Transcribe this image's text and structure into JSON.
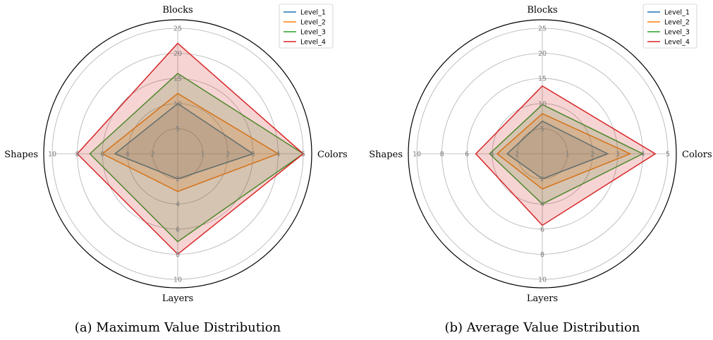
{
  "chart_data": [
    {
      "type": "radar",
      "caption": "(a) Maximum Value Distribution",
      "axes": [
        {
          "name": "Blocks",
          "max": 25,
          "ticks": [
            5,
            10,
            15,
            20,
            25
          ]
        },
        {
          "name": "Colors",
          "max": 5,
          "ticks": [
            1,
            2,
            3,
            4,
            5
          ]
        },
        {
          "name": "Layers",
          "max": 10,
          "ticks": [
            2,
            4,
            6,
            8,
            10
          ]
        },
        {
          "name": "Shapes",
          "max": 10,
          "ticks": [
            2,
            4,
            6,
            8,
            10
          ]
        }
      ],
      "series": [
        {
          "name": "Level_1",
          "color": "#1f77b4",
          "values": [
            10,
            3,
            2,
            5
          ]
        },
        {
          "name": "Level_2",
          "color": "#ff7f0e",
          "values": [
            12,
            4,
            3,
            6
          ]
        },
        {
          "name": "Level_3",
          "color": "#2ca02c",
          "values": [
            16,
            5,
            7,
            7
          ]
        },
        {
          "name": "Level_4",
          "color": "#d62728",
          "values": [
            22,
            5,
            8,
            8
          ]
        }
      ],
      "legend": "top-right",
      "grid": true
    },
    {
      "type": "radar",
      "caption": "(b) Average Value Distribution",
      "axes": [
        {
          "name": "Blocks",
          "max": 25,
          "ticks": [
            5,
            10,
            15,
            20,
            25
          ]
        },
        {
          "name": "Colors",
          "max": 5,
          "ticks": [
            1,
            2,
            3,
            4,
            5
          ]
        },
        {
          "name": "Layers",
          "max": 10,
          "ticks": [
            2,
            4,
            6,
            8,
            10
          ]
        },
        {
          "name": "Shapes",
          "max": 10,
          "ticks": [
            2,
            4,
            6,
            8,
            10
          ]
        }
      ],
      "series": [
        {
          "name": "Level_1",
          "color": "#1f77b4",
          "values": [
            6.5,
            2.6,
            2.0,
            2.8
          ]
        },
        {
          "name": "Level_2",
          "color": "#ff7f0e",
          "values": [
            8.0,
            3.5,
            2.8,
            3.6
          ]
        },
        {
          "name": "Level_3",
          "color": "#2ca02c",
          "values": [
            9.8,
            4.0,
            4.0,
            4.2
          ]
        },
        {
          "name": "Level_4",
          "color": "#d62728",
          "values": [
            13.5,
            4.5,
            5.7,
            5.3
          ]
        }
      ],
      "legend": "top-right",
      "grid": true
    }
  ]
}
